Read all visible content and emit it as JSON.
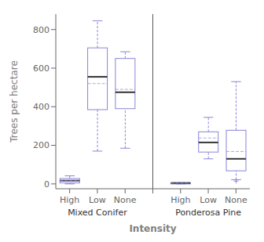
{
  "chart_data": {
    "type": "box",
    "ylabel": "Trees per hectare",
    "xlabel": "Intensity",
    "categories": [
      "High",
      "Low",
      "None"
    ],
    "groups": [
      {
        "name": "Mixed Conifer",
        "boxes": [
          {
            "whislo": 0,
            "q1": 5,
            "med": 17,
            "mean": 18,
            "q3": 28,
            "whishi": 42,
            "fliers": []
          },
          {
            "whislo": 170,
            "q1": 385,
            "med": 555,
            "mean": 520,
            "q3": 705,
            "whishi": 845,
            "fliers": []
          },
          {
            "whislo": 185,
            "q1": 390,
            "med": 475,
            "mean": 490,
            "q3": 650,
            "whishi": 685,
            "fliers": []
          }
        ]
      },
      {
        "name": "Ponderosa Pine",
        "boxes": [
          {
            "whislo": 0,
            "q1": 0,
            "med": 5,
            "mean": 5,
            "q3": 5,
            "whishi": 5,
            "fliers": []
          },
          {
            "whislo": 130,
            "q1": 165,
            "med": 215,
            "mean": 238,
            "q3": 270,
            "whishi": 345,
            "fliers": []
          },
          {
            "whislo": 22,
            "q1": 68,
            "med": 130,
            "mean": 168,
            "q3": 278,
            "whishi": 530,
            "fliers": [
              15
            ]
          }
        ]
      }
    ],
    "ylim": [
      -25,
      880
    ],
    "yticks": [
      0,
      200,
      400,
      600,
      800
    ],
    "color": "#8884d8",
    "grid": false
  }
}
